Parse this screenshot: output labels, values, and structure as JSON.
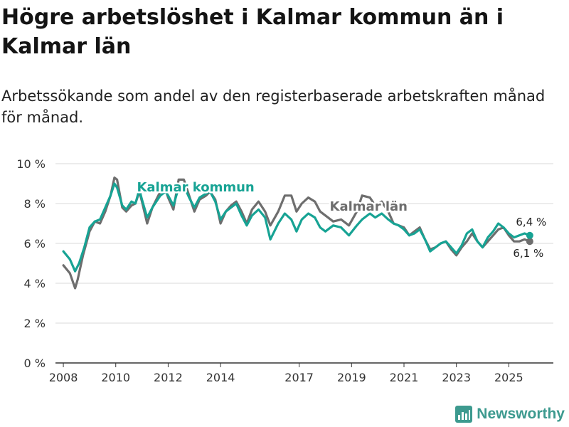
{
  "title": "Högre arbetslöshet i Kalmar kommun än i Kalmar län",
  "subtitle": "Arbetssökande som andel av den registerbaserade arbetskraften månad för månad.",
  "brand": {
    "name": "Newsworthy",
    "icon": "bar-chart-icon",
    "color": "#3d9a8f"
  },
  "colors": {
    "kommun": "#17a394",
    "lan": "#6e6e6e",
    "grid": "#d9d9d9",
    "axis": "#333333"
  },
  "chart_data": {
    "type": "line",
    "title": "Högre arbetslöshet i Kalmar kommun än i Kalmar län",
    "xlabel": "",
    "ylabel": "",
    "ylim": [
      0,
      10
    ],
    "xlim": [
      2007.7,
      2026.7
    ],
    "yticks": [
      0,
      2,
      4,
      6,
      8,
      10
    ],
    "ytick_labels": [
      "0 %",
      "2 %",
      "4 %",
      "6 %",
      "8 %",
      "10 %"
    ],
    "xticks": [
      2008,
      2010,
      2012,
      2014,
      2017,
      2019,
      2021,
      2023,
      2025
    ],
    "xtick_labels": [
      "2008",
      "2010",
      "2012",
      "2014",
      "2017",
      "2019",
      "2021",
      "2023",
      "2025"
    ],
    "grid": true,
    "series": [
      {
        "name": "Kalmar län",
        "label": "Kalmar län",
        "end_label": "6,1 %",
        "x": [
          2008.0,
          2008.25,
          2008.45,
          2008.55,
          2008.75,
          2009.0,
          2009.2,
          2009.4,
          2009.6,
          2009.8,
          2009.95,
          2010.05,
          2010.25,
          2010.4,
          2010.6,
          2010.75,
          2010.9,
          2011.0,
          2011.2,
          2011.4,
          2011.55,
          2011.7,
          2011.9,
          2012.0,
          2012.2,
          2012.4,
          2012.6,
          2012.8,
          2013.0,
          2013.2,
          2013.45,
          2013.6,
          2013.8,
          2014.0,
          2014.2,
          2014.4,
          2014.6,
          2014.8,
          2015.0,
          2015.2,
          2015.45,
          2015.7,
          2015.9,
          2016.2,
          2016.45,
          2016.7,
          2016.9,
          2017.1,
          2017.35,
          2017.6,
          2017.8,
          2018.0,
          2018.3,
          2018.6,
          2018.9,
          2019.2,
          2019.4,
          2019.7,
          2019.9,
          2020.15,
          2020.4,
          2020.6,
          2020.8,
          2021.0,
          2021.2,
          2021.4,
          2021.6,
          2021.8,
          2022.0,
          2022.2,
          2022.4,
          2022.6,
          2022.8,
          2023.0,
          2023.2,
          2023.4,
          2023.6,
          2023.8,
          2024.0,
          2024.2,
          2024.4,
          2024.6,
          2024.8,
          2025.0,
          2025.2,
          2025.4,
          2025.6,
          2025.8
        ],
        "values": [
          4.9,
          4.5,
          3.75,
          4.2,
          5.4,
          6.6,
          7.1,
          7.0,
          7.6,
          8.4,
          9.3,
          9.2,
          7.8,
          7.6,
          7.9,
          8.0,
          8.6,
          8.1,
          7.0,
          7.8,
          8.2,
          8.6,
          8.7,
          8.3,
          7.7,
          9.2,
          9.2,
          8.4,
          7.6,
          8.2,
          8.4,
          8.6,
          8.2,
          7.0,
          7.6,
          7.9,
          8.1,
          7.6,
          7.0,
          7.7,
          8.1,
          7.6,
          6.9,
          7.6,
          8.4,
          8.4,
          7.6,
          8.0,
          8.3,
          8.1,
          7.6,
          7.4,
          7.1,
          7.2,
          6.9,
          7.6,
          8.4,
          8.3,
          7.9,
          8.1,
          7.6,
          7.0,
          6.9,
          6.8,
          6.4,
          6.6,
          6.8,
          6.2,
          5.7,
          5.8,
          6.0,
          6.1,
          5.7,
          5.4,
          5.8,
          6.1,
          6.5,
          6.1,
          5.8,
          6.1,
          6.4,
          6.7,
          6.8,
          6.4,
          6.1,
          6.1,
          6.2,
          6.1
        ]
      },
      {
        "name": "Kalmar kommun",
        "label": "Kalmar kommun",
        "end_label": "6,4 %",
        "x": [
          2008.0,
          2008.25,
          2008.45,
          2008.6,
          2008.8,
          2009.0,
          2009.2,
          2009.4,
          2009.6,
          2009.8,
          2009.95,
          2010.05,
          2010.25,
          2010.4,
          2010.6,
          2010.75,
          2010.9,
          2011.0,
          2011.2,
          2011.4,
          2011.55,
          2011.7,
          2011.9,
          2012.0,
          2012.2,
          2012.4,
          2012.6,
          2012.8,
          2013.0,
          2013.2,
          2013.45,
          2013.6,
          2013.8,
          2014.0,
          2014.2,
          2014.4,
          2014.6,
          2014.8,
          2015.0,
          2015.2,
          2015.45,
          2015.7,
          2015.9,
          2016.2,
          2016.45,
          2016.7,
          2016.9,
          2017.1,
          2017.35,
          2017.6,
          2017.8,
          2018.0,
          2018.3,
          2018.6,
          2018.9,
          2019.2,
          2019.4,
          2019.7,
          2019.9,
          2020.15,
          2020.4,
          2020.6,
          2020.8,
          2021.0,
          2021.2,
          2021.4,
          2021.6,
          2021.8,
          2022.0,
          2022.2,
          2022.4,
          2022.6,
          2022.8,
          2023.0,
          2023.2,
          2023.4,
          2023.6,
          2023.8,
          2024.0,
          2024.2,
          2024.4,
          2024.6,
          2024.8,
          2025.0,
          2025.2,
          2025.4,
          2025.6,
          2025.8
        ],
        "values": [
          5.6,
          5.2,
          4.6,
          5.0,
          5.8,
          6.8,
          7.1,
          7.2,
          7.8,
          8.4,
          9.0,
          8.8,
          7.9,
          7.7,
          8.1,
          8.0,
          8.7,
          8.2,
          7.3,
          7.8,
          8.1,
          8.4,
          8.6,
          8.4,
          7.9,
          8.8,
          8.9,
          8.3,
          7.8,
          8.3,
          8.5,
          8.6,
          8.1,
          7.2,
          7.6,
          7.8,
          8.0,
          7.4,
          6.9,
          7.4,
          7.7,
          7.3,
          6.2,
          7.0,
          7.5,
          7.2,
          6.6,
          7.2,
          7.5,
          7.3,
          6.8,
          6.6,
          6.9,
          6.8,
          6.4,
          6.9,
          7.2,
          7.5,
          7.3,
          7.5,
          7.2,
          7.0,
          6.9,
          6.7,
          6.4,
          6.5,
          6.7,
          6.2,
          5.6,
          5.8,
          6.0,
          6.1,
          5.8,
          5.5,
          5.9,
          6.5,
          6.7,
          6.1,
          5.8,
          6.3,
          6.6,
          7.0,
          6.8,
          6.5,
          6.3,
          6.4,
          6.5,
          6.4
        ]
      }
    ]
  }
}
